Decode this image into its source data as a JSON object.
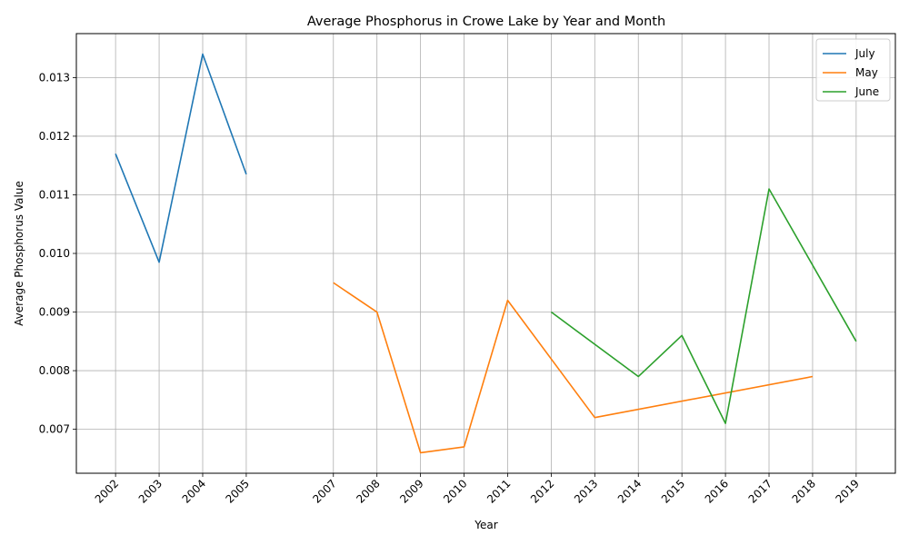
{
  "chart_data": {
    "type": "line",
    "title": "Average Phosphorus in Crowe Lake by Year and Month",
    "xlabel": "Year",
    "ylabel": "Average Phosphorus Value",
    "x_ticks": [
      2002,
      2003,
      2004,
      2005,
      2007,
      2008,
      2009,
      2010,
      2011,
      2012,
      2013,
      2014,
      2015,
      2016,
      2017,
      2018,
      2019
    ],
    "y_ticks": [
      0.007,
      0.008,
      0.009,
      0.01,
      0.011,
      0.012,
      0.013
    ],
    "y_tick_labels": [
      "0.007",
      "0.008",
      "0.009",
      "0.010",
      "0.011",
      "0.012",
      "0.013"
    ],
    "xlim": [
      2001.1,
      2019.9
    ],
    "ylim": [
      0.00625,
      0.01375
    ],
    "grid": true,
    "legend_position": "top-right",
    "series": [
      {
        "name": "July",
        "color": "#1f77b4",
        "points": [
          [
            2002,
            0.0117
          ],
          [
            2003,
            0.00985
          ],
          [
            2004,
            0.0134
          ],
          [
            2005,
            0.01135
          ]
        ]
      },
      {
        "name": "May",
        "color": "#ff7f0e",
        "points": [
          [
            2007,
            0.0095
          ],
          [
            2008,
            0.009
          ],
          [
            2009,
            0.0066
          ],
          [
            2010,
            0.0067
          ],
          [
            2011,
            0.0092
          ],
          [
            2013,
            0.0072
          ],
          [
            2018,
            0.0079
          ]
        ]
      },
      {
        "name": "June",
        "color": "#2ca02c",
        "points": [
          [
            2012,
            0.009
          ],
          [
            2014,
            0.0079
          ],
          [
            2015,
            0.0086
          ],
          [
            2016,
            0.0071
          ],
          [
            2017,
            0.0111
          ],
          [
            2019,
            0.0085
          ]
        ]
      }
    ]
  }
}
